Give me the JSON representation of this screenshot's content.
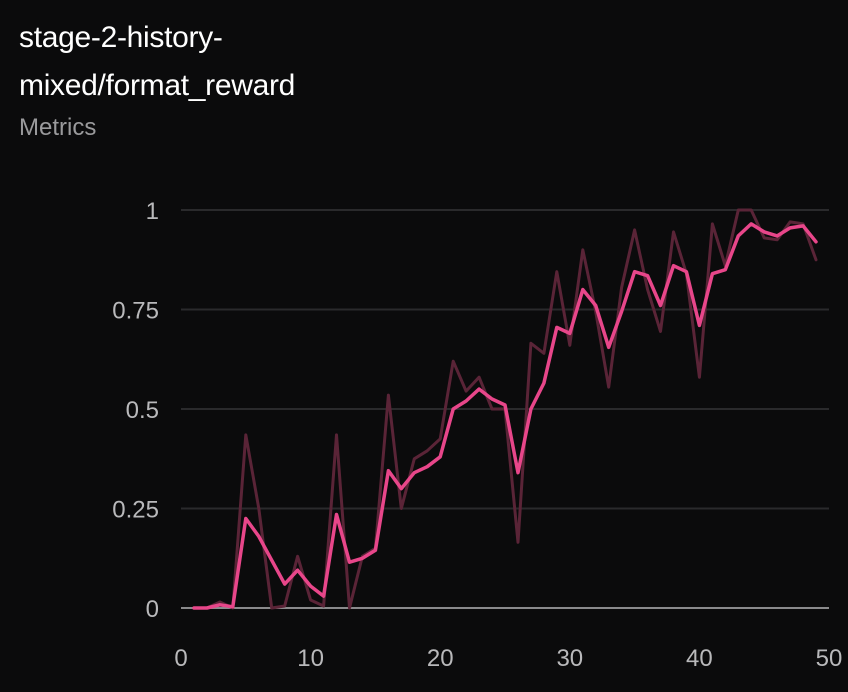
{
  "panel": {
    "title_line1": "stage-2-history-",
    "title_line2": "mixed/format_reward",
    "subtitle": "Metrics"
  },
  "colors": {
    "background": "#0b0b0c",
    "grid": "#2a2a2c",
    "axis": "#8a8a8c",
    "smoothed_line": "#e8468a",
    "raw_line": "#5a2437"
  },
  "chart_data": {
    "type": "line",
    "xlim": [
      0,
      50
    ],
    "ylim": [
      0,
      1
    ],
    "x_ticks": [
      0,
      10,
      20,
      30,
      40,
      50
    ],
    "y_ticks": [
      0,
      0.25,
      0.5,
      0.75,
      1
    ],
    "x_tick_labels": [
      "0",
      "10",
      "20",
      "30",
      "40",
      "50"
    ],
    "y_tick_labels": [
      "0",
      "0.25",
      "0.5",
      "0.75",
      "1"
    ],
    "grid": true,
    "series": [
      {
        "role": "raw",
        "x": [
          1,
          2,
          3,
          4,
          5,
          6,
          7,
          8,
          9,
          10,
          11,
          12,
          13,
          14,
          15,
          16,
          17,
          18,
          19,
          20,
          21,
          22,
          23,
          24,
          25,
          26,
          27,
          28,
          29,
          30,
          31,
          32,
          33,
          34,
          35,
          36,
          37,
          38,
          39,
          40,
          41,
          42,
          43,
          44,
          45,
          46,
          47,
          48,
          49
        ],
        "y": [
          0,
          0,
          0.015,
          0,
          0.435,
          0.25,
          0,
          0.005,
          0.13,
          0.02,
          0.005,
          0.435,
          0,
          0.13,
          0.15,
          0.535,
          0.25,
          0.375,
          0.395,
          0.425,
          0.62,
          0.545,
          0.58,
          0.5,
          0.5,
          0.165,
          0.665,
          0.64,
          0.845,
          0.66,
          0.9,
          0.745,
          0.555,
          0.805,
          0.95,
          0.8,
          0.695,
          0.945,
          0.84,
          0.58,
          0.965,
          0.86,
          1,
          1,
          0.93,
          0.925,
          0.97,
          0.965,
          0.875
        ]
      },
      {
        "role": "smoothed",
        "x": [
          1,
          2,
          3,
          4,
          5,
          6,
          7,
          8,
          9,
          10,
          11,
          12,
          13,
          14,
          15,
          16,
          17,
          18,
          19,
          20,
          21,
          22,
          23,
          24,
          25,
          26,
          27,
          28,
          29,
          30,
          31,
          32,
          33,
          34,
          35,
          36,
          37,
          38,
          39,
          40,
          41,
          42,
          43,
          44,
          45,
          46,
          47,
          48,
          49
        ],
        "y": [
          0,
          0,
          0.008,
          0.003,
          0.225,
          0.18,
          0.12,
          0.06,
          0.095,
          0.055,
          0.03,
          0.235,
          0.115,
          0.125,
          0.145,
          0.345,
          0.3,
          0.34,
          0.355,
          0.38,
          0.5,
          0.52,
          0.55,
          0.525,
          0.51,
          0.34,
          0.5,
          0.565,
          0.705,
          0.69,
          0.8,
          0.76,
          0.655,
          0.745,
          0.845,
          0.835,
          0.76,
          0.86,
          0.845,
          0.71,
          0.84,
          0.85,
          0.935,
          0.965,
          0.945,
          0.935,
          0.955,
          0.96,
          0.92
        ]
      }
    ]
  }
}
